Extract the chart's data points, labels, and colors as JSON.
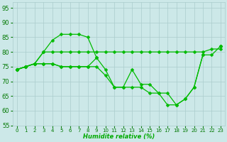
{
  "background_color": "#cce8e8",
  "grid_color": "#aacccc",
  "line_color": "#00bb00",
  "xlabel": "Humidite relative (%)",
  "xlabel_color": "#00aa00",
  "tick_color": "#007700",
  "xlim": [
    -0.5,
    23.5
  ],
  "ylim": [
    55,
    97
  ],
  "yticks": [
    55,
    60,
    65,
    70,
    75,
    80,
    85,
    90,
    95
  ],
  "xticks": [
    0,
    1,
    2,
    3,
    4,
    5,
    6,
    7,
    8,
    9,
    10,
    11,
    12,
    13,
    14,
    15,
    16,
    17,
    18,
    19,
    20,
    21,
    22,
    23
  ],
  "curves": [
    {
      "x": [
        0,
        1,
        2,
        3,
        4,
        5,
        6,
        7,
        8,
        9,
        10,
        11,
        12,
        13,
        14,
        15,
        16,
        17,
        18,
        19,
        20,
        21,
        22,
        23
      ],
      "y": [
        74,
        75,
        76,
        80,
        84,
        86,
        86,
        86,
        85,
        78,
        null,
        null,
        null,
        null,
        null,
        null,
        null,
        null,
        null,
        null,
        null,
        null,
        null,
        null
      ]
    },
    {
      "x": [
        0,
        1,
        2,
        3,
        4,
        5,
        6,
        7,
        8,
        9,
        10,
        11,
        12,
        13,
        14,
        15,
        16,
        17,
        18,
        19,
        20,
        21,
        22,
        23
      ],
      "y": [
        74,
        75,
        76,
        80,
        80,
        80,
        80,
        80,
        80,
        80,
        80,
        80,
        80,
        80,
        80,
        80,
        80,
        80,
        80,
        80,
        80,
        80,
        81,
        81
      ]
    },
    {
      "x": [
        0,
        1,
        2,
        3,
        4,
        5,
        6,
        7,
        8,
        9,
        10,
        11,
        12,
        13,
        14,
        15,
        16,
        17,
        18,
        19,
        20,
        21,
        22,
        23
      ],
      "y": [
        74,
        75,
        76,
        76,
        76,
        75,
        75,
        75,
        75,
        78,
        74,
        68,
        68,
        74,
        69,
        69,
        66,
        66,
        62,
        64,
        68,
        79,
        null,
        82
      ]
    },
    {
      "x": [
        0,
        1,
        2,
        3,
        4,
        5,
        6,
        7,
        8,
        9,
        10,
        11,
        12,
        13,
        14,
        15,
        16,
        17,
        18,
        19,
        20,
        21,
        22,
        23
      ],
      "y": [
        74,
        75,
        76,
        76,
        76,
        75,
        75,
        75,
        75,
        75,
        72,
        68,
        68,
        68,
        68,
        66,
        66,
        62,
        62,
        64,
        68,
        79,
        79,
        82
      ]
    },
    {
      "x": [
        0,
        1,
        2,
        3,
        4,
        5,
        6,
        7,
        8,
        9,
        10,
        11,
        12,
        13,
        14,
        15,
        16,
        17,
        18,
        19,
        20,
        21,
        22,
        23
      ],
      "y": [
        74,
        null,
        null,
        null,
        null,
        null,
        null,
        null,
        null,
        null,
        null,
        null,
        null,
        null,
        null,
        null,
        null,
        null,
        null,
        null,
        null,
        null,
        null,
        82
      ]
    }
  ]
}
